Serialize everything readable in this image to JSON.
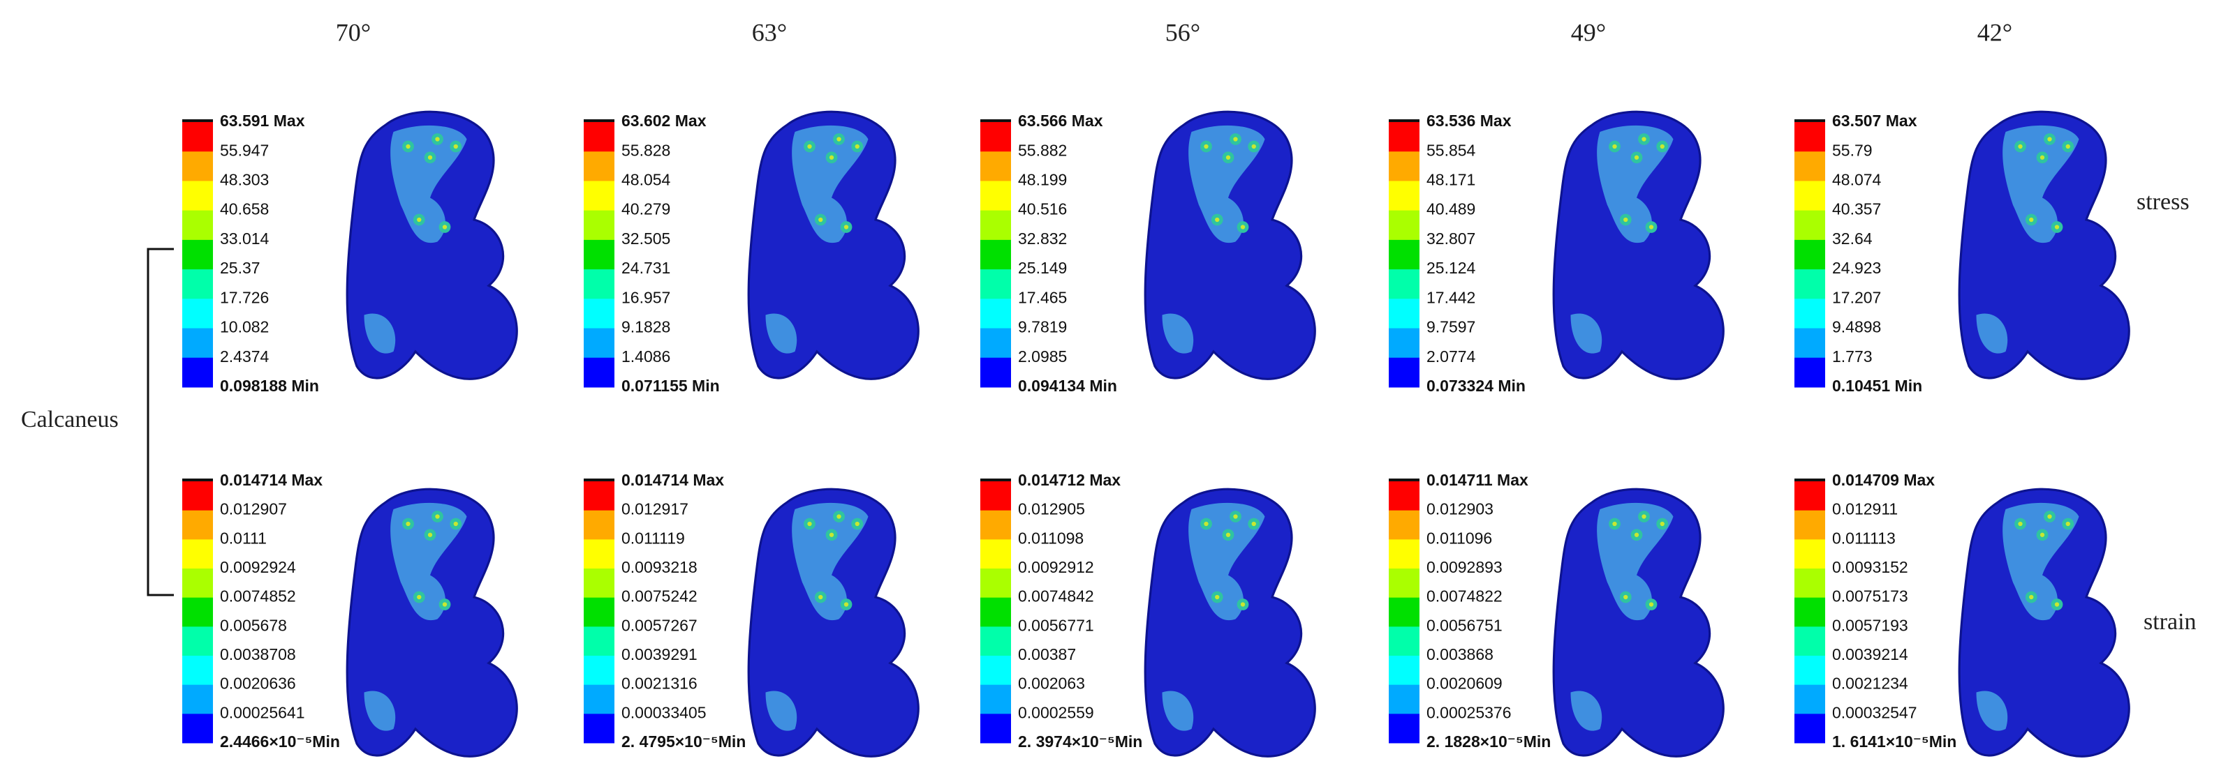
{
  "row_labels": {
    "group": "Calcaneus",
    "stress": "stress",
    "strain": "strain"
  },
  "columns": [
    {
      "angle": "70°",
      "stress": [
        "63.591 Max",
        "55.947",
        "48.303",
        "40.658",
        "33.014",
        "25.37",
        "17.726",
        "10.082",
        "2.4374",
        "0.098188 Min"
      ],
      "strain": [
        "0.014714 Max",
        "0.012907",
        "0.0111",
        "0.0092924",
        "0.0074852",
        "0.005678",
        "0.0038708",
        "0.0020636",
        "0.00025641",
        "2.4466×10⁻⁵Min"
      ]
    },
    {
      "angle": "63°",
      "stress": [
        "63.602 Max",
        "55.828",
        "48.054",
        "40.279",
        "32.505",
        "24.731",
        "16.957",
        "9.1828",
        "1.4086",
        "0.071155 Min"
      ],
      "strain": [
        "0.014714 Max",
        "0.012917",
        "0.011119",
        "0.0093218",
        "0.0075242",
        "0.0057267",
        "0.0039291",
        "0.0021316",
        "0.00033405",
        "2. 4795×10⁻⁵Min"
      ]
    },
    {
      "angle": "56°",
      "stress": [
        "63.566 Max",
        "55.882",
        "48.199",
        "40.516",
        "32.832",
        "25.149",
        "17.465",
        "9.7819",
        "2.0985",
        "0.094134 Min"
      ],
      "strain": [
        "0.014712 Max",
        "0.012905",
        "0.011098",
        "0.0092912",
        "0.0074842",
        "0.0056771",
        "0.00387",
        "0.002063",
        "0.0002559",
        "2. 3974×10⁻⁵Min"
      ]
    },
    {
      "angle": "49°",
      "stress": [
        "63.536 Max",
        "55.854",
        "48.171",
        "40.489",
        "32.807",
        "25.124",
        "17.442",
        "9.7597",
        "2.0774",
        "0.073324 Min"
      ],
      "strain": [
        "0.014711 Max",
        "0.012903",
        "0.011096",
        "0.0092893",
        "0.0074822",
        "0.0056751",
        "0.003868",
        "0.0020609",
        "0.00025376",
        "2. 1828×10⁻⁵Min"
      ]
    },
    {
      "angle": "42°",
      "stress": [
        "63.507 Max",
        "55.79",
        "48.074",
        "40.357",
        "32.64",
        "24.923",
        "17.207",
        "9.4898",
        "1.773",
        "0.10451 Min"
      ],
      "strain": [
        "0.014709 Max",
        "0.012911",
        "0.011113",
        "0.0093152",
        "0.0075173",
        "0.0057193",
        "0.0039214",
        "0.0021234",
        "0.00032547",
        "1. 6141×10⁻⁵Min"
      ]
    }
  ]
}
